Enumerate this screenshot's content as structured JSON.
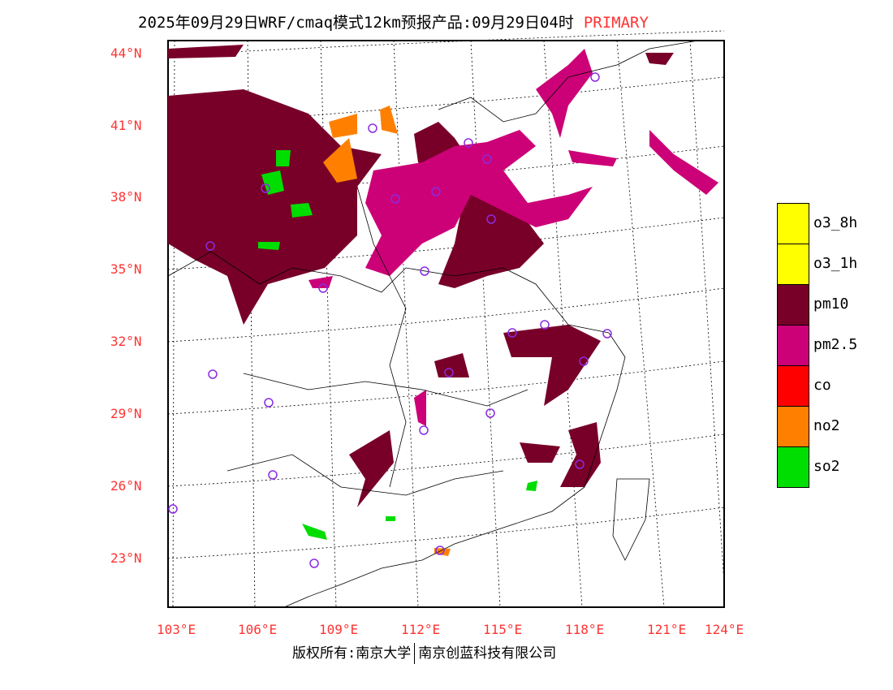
{
  "title": {
    "text": "2025年09月29日WRF/cmaq模式12km预报产品:09月29日04时",
    "tag": "PRIMARY"
  },
  "lat_labels": [
    "44°N",
    "41°N",
    "38°N",
    "35°N",
    "32°N",
    "29°N",
    "26°N",
    "23°N"
  ],
  "lon_labels": [
    "103°E",
    "106°E",
    "109°E",
    "112°E",
    "115°E",
    "118°E",
    "121°E",
    "124°E"
  ],
  "legend": [
    {
      "label": "o3_8h",
      "color": "#ffff00"
    },
    {
      "label": "o3_1h",
      "color": "#ffff00"
    },
    {
      "label": "pm10",
      "color": "#780028"
    },
    {
      "label": "pm2.5",
      "color": "#cc0077"
    },
    {
      "label": "co",
      "color": "#ff0000"
    },
    {
      "label": "no2",
      "color": "#ff8000"
    },
    {
      "label": "so2",
      "color": "#00dd00"
    }
  ],
  "footer": {
    "left": "版权所有:南京大学",
    "right": "南京创蓝科技有限公司"
  }
}
